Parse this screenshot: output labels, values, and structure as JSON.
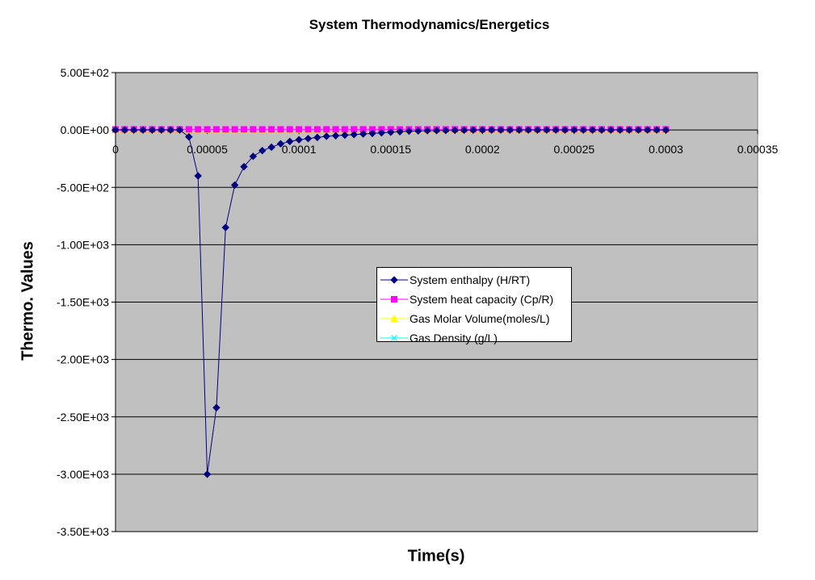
{
  "chart_data": {
    "type": "line",
    "title": "System Thermodynamics/Energetics",
    "xlabel": "Time(s)",
    "ylabel": "Thermo. Values",
    "xlim": [
      0,
      0.00035
    ],
    "ylim": [
      -3500,
      500
    ],
    "grid": true,
    "legend_position": "center-right",
    "x_ticks": [
      0,
      5e-05,
      0.0001,
      0.00015,
      0.0002,
      0.00025,
      0.0003,
      0.00035
    ],
    "x_tick_labels": [
      "0",
      "0.00005",
      "0.0001",
      "0.00015",
      "0.0002",
      "0.00025",
      "0.0003",
      "0.00035"
    ],
    "y_ticks": [
      500,
      0,
      -500,
      -1000,
      -1500,
      -2000,
      -2500,
      -3000,
      -3500
    ],
    "y_tick_labels": [
      "5.00E+02",
      "0.00E+00",
      "-5.00E+02",
      "-1.00E+03",
      "-1.50E+03",
      "-2.00E+03",
      "-2.50E+03",
      "-3.00E+03",
      "-3.50E+03"
    ],
    "x": [
      0,
      5e-06,
      1e-05,
      1.5e-05,
      2e-05,
      2.5e-05,
      3e-05,
      3.5e-05,
      4e-05,
      4.5e-05,
      5e-05,
      5.5e-05,
      6e-05,
      6.5e-05,
      7e-05,
      7.5e-05,
      8e-05,
      8.5e-05,
      9e-05,
      9.5e-05,
      0.0001,
      0.000105,
      0.00011,
      0.000115,
      0.00012,
      0.000125,
      0.00013,
      0.000135,
      0.00014,
      0.000145,
      0.00015,
      0.000155,
      0.00016,
      0.000165,
      0.00017,
      0.000175,
      0.00018,
      0.000185,
      0.00019,
      0.000195,
      0.0002,
      0.000205,
      0.00021,
      0.000215,
      0.00022,
      0.000225,
      0.00023,
      0.000235,
      0.00024,
      0.000245,
      0.00025,
      0.000255,
      0.00026,
      0.000265,
      0.00027,
      0.000275,
      0.00028,
      0.000285,
      0.00029,
      0.000295,
      0.0003
    ],
    "series": [
      {
        "name": "System enthalpy (H/RT)",
        "color": "#000080",
        "marker": "diamond",
        "values": [
          0,
          0,
          0,
          0,
          0,
          0,
          0,
          0,
          -60,
          -400,
          -3000,
          -2420,
          -850,
          -480,
          -320,
          -230,
          -180,
          -150,
          -120,
          -100,
          -85,
          -75,
          -65,
          -55,
          -50,
          -45,
          -40,
          -35,
          -30,
          -25,
          -20,
          -15,
          -10,
          -8,
          -6,
          -5,
          -4,
          -3,
          -2,
          -1,
          0,
          0,
          0,
          0,
          0,
          0,
          0,
          0,
          0,
          0,
          0,
          0,
          0,
          0,
          0,
          0,
          0,
          0,
          0,
          0,
          0
        ]
      },
      {
        "name": "System heat capacity (Cp/R)",
        "color": "#FF00FF",
        "marker": "square",
        "values": [
          5,
          5,
          5,
          5,
          5,
          5,
          5,
          5,
          5,
          5,
          5,
          5,
          5,
          5,
          5,
          5,
          5,
          5,
          5,
          5,
          5,
          5,
          5,
          5,
          5,
          5,
          5,
          5,
          5,
          5,
          5,
          5,
          5,
          5,
          5,
          5,
          5,
          5,
          5,
          5,
          5,
          5,
          5,
          5,
          5,
          5,
          5,
          5,
          5,
          5,
          5,
          5,
          5,
          5,
          5,
          5,
          5,
          5,
          5,
          5,
          5
        ]
      },
      {
        "name": "Gas Molar Volume(moles/L)",
        "color": "#FFFF00",
        "marker": "triangle",
        "values": [
          0,
          0,
          0,
          0,
          0,
          0,
          0,
          0,
          0,
          0,
          0,
          0,
          0,
          0,
          0,
          0,
          0,
          0,
          0,
          0,
          0,
          0,
          0,
          0,
          0,
          0,
          0,
          0,
          0,
          0,
          0,
          0,
          0,
          0,
          0,
          0,
          0,
          0,
          0,
          0,
          0,
          0,
          0,
          0,
          0,
          0,
          0,
          0,
          0,
          0,
          0,
          0,
          0,
          0,
          0,
          0,
          0,
          0,
          0,
          0,
          0
        ]
      },
      {
        "name": "Gas Density (g/L)",
        "color": "#00FFFF",
        "marker": "x",
        "values": [
          0,
          0,
          0,
          0,
          0,
          0,
          0,
          0,
          0,
          0,
          0,
          0,
          0,
          0,
          0,
          0,
          0,
          0,
          0,
          0,
          0,
          0,
          0,
          0,
          0,
          0,
          0,
          0,
          0,
          0,
          0,
          0,
          0,
          0,
          0,
          0,
          0,
          0,
          0,
          0,
          0,
          0,
          0,
          0,
          0,
          0,
          0,
          0,
          0,
          0,
          0,
          0,
          0,
          0,
          0,
          0,
          0,
          0,
          0,
          0,
          0
        ]
      }
    ]
  }
}
